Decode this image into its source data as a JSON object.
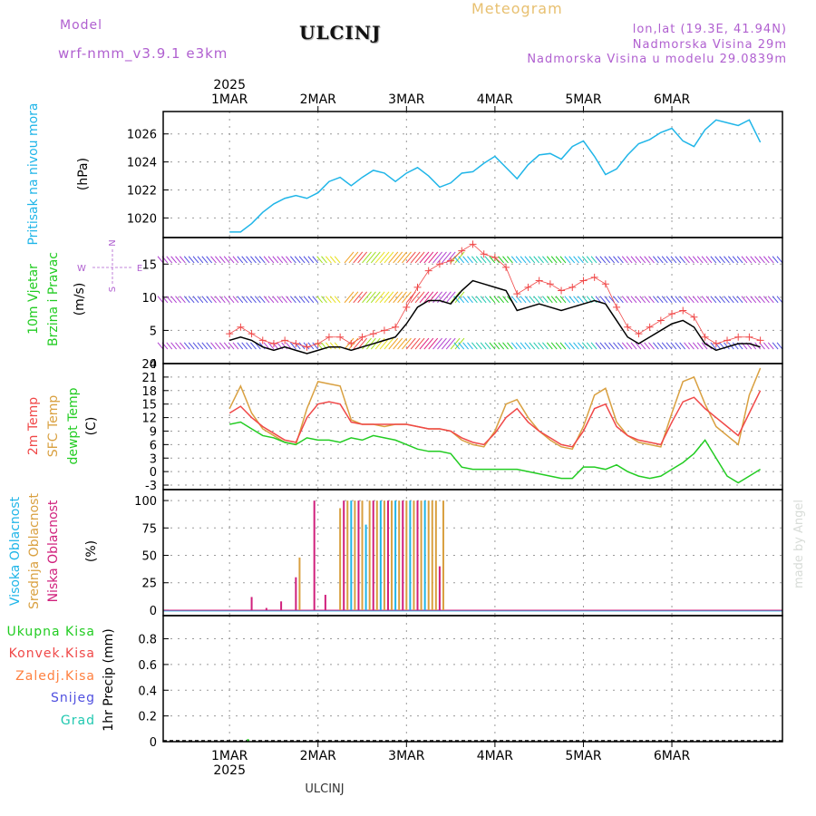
{
  "header": {
    "title": "ULCINJ",
    "meteogram": "Meteogram",
    "model_label": "Model",
    "model_name": "wrf-nmm_v3.9.1 e3km",
    "lonlat": "lon,lat (19.3E, 41.94N)",
    "altitude": "Nadmorska Visina 29m",
    "model_altitude": "Nadmorska Visina u modelu 29.0839m",
    "year": "2025",
    "footer_station": "ULCINJ",
    "credit": "made by Angel"
  },
  "colors": {
    "pressure": "#1fb5e8",
    "temp2m": "#f04848",
    "sfc_temp": "#d9a040",
    "dewpoint": "#22cc22",
    "high_cloud": "#1fb5e8",
    "mid_cloud": "#d9a040",
    "low_cloud": "#d0207c",
    "wind_speed": "#000000",
    "gust": "#f04848",
    "total_precip": "#22cc22",
    "conv_precip": "#f04848",
    "frz_precip": "#ff8040",
    "snow": "#5050e0",
    "graupel": "#20c8b0",
    "purple": "#b060d0"
  },
  "chart_data": [
    {
      "type": "line",
      "panel": "pressure",
      "ylabel_name": "Pritisak na nivou mora",
      "ylabel_unit": "(hPa)",
      "ylim": [
        1018.6,
        1027.6
      ],
      "yticks": [
        1020,
        1022,
        1024,
        1026
      ],
      "day_labels": [
        "1MAR",
        "2MAR",
        "3MAR",
        "4MAR",
        "5MAR",
        "6MAR"
      ],
      "x_hours": [
        0,
        3,
        6,
        9,
        12,
        15,
        18,
        21,
        24,
        27,
        30,
        33,
        36,
        39,
        42,
        45,
        48,
        51,
        54,
        57,
        60,
        63,
        66,
        69,
        72,
        75,
        78,
        81,
        84,
        87,
        90,
        93,
        96,
        99,
        102,
        105,
        108,
        111,
        114,
        117,
        120,
        123,
        126,
        129,
        132,
        135,
        138,
        141,
        144
      ],
      "series": [
        {
          "name": "pressure",
          "values": [
            1019.0,
            1019.0,
            1019.6,
            1020.4,
            1021.0,
            1021.4,
            1021.6,
            1021.4,
            1021.8,
            1022.6,
            1022.9,
            1022.3,
            1022.9,
            1023.4,
            1023.2,
            1022.6,
            1023.2,
            1023.6,
            1023.0,
            1022.2,
            1022.5,
            1023.2,
            1023.3,
            1023.9,
            1024.4,
            1023.6,
            1022.8,
            1023.8,
            1024.5,
            1024.6,
            1024.2,
            1025.1,
            1025.5,
            1024.4,
            1023.1,
            1023.5,
            1024.5,
            1025.3,
            1025.6,
            1026.1,
            1026.4,
            1025.5,
            1025.1,
            1026.3,
            1027.0,
            1026.8,
            1026.6,
            1027.0,
            1025.4
          ]
        }
      ]
    },
    {
      "type": "line",
      "panel": "wind",
      "ylabel_name": "10m Vjetar",
      "ylabel_name2": "Brzina i Pravac",
      "ylabel_unit": "(m/s)",
      "compass": {
        "n": "N",
        "s": "S",
        "e": "E",
        "w": "W",
        "up": "^",
        "down": "v"
      },
      "ylim": [
        0,
        19
      ],
      "yticks": [
        0,
        5,
        10,
        15
      ],
      "x_hours": [
        0,
        3,
        6,
        9,
        12,
        15,
        18,
        21,
        24,
        27,
        30,
        33,
        36,
        39,
        42,
        45,
        48,
        51,
        54,
        57,
        60,
        63,
        66,
        69,
        72,
        75,
        78,
        81,
        84,
        87,
        90,
        93,
        96,
        99,
        102,
        105,
        108,
        111,
        114,
        117,
        120,
        123,
        126,
        129,
        132,
        135,
        138,
        141,
        144
      ],
      "series": [
        {
          "name": "wind speed",
          "values": [
            3.5,
            4.0,
            3.5,
            2.5,
            2.0,
            2.5,
            2.0,
            1.5,
            2.0,
            2.5,
            2.5,
            2.0,
            2.5,
            3.0,
            3.5,
            4.0,
            6.0,
            8.5,
            9.5,
            9.5,
            9.0,
            11.0,
            12.5,
            12.0,
            11.5,
            11.0,
            8.0,
            8.5,
            9.0,
            8.5,
            8.0,
            8.5,
            9.0,
            9.5,
            9.0,
            6.5,
            4.0,
            3.0,
            4.0,
            5.0,
            6.0,
            6.5,
            5.5,
            3.0,
            2.0,
            2.5,
            3.0,
            3.0,
            2.5
          ]
        },
        {
          "name": "gust",
          "values": [
            4.5,
            5.5,
            4.5,
            3.5,
            3.0,
            3.5,
            3.0,
            2.5,
            3.0,
            4.0,
            4.0,
            3.0,
            4.0,
            4.5,
            5.0,
            5.5,
            8.5,
            11.5,
            14.0,
            15.0,
            15.5,
            17.0,
            18.0,
            16.5,
            16.0,
            14.5,
            10.5,
            11.5,
            12.5,
            12.0,
            11.0,
            11.5,
            12.5,
            13.0,
            12.0,
            8.5,
            5.5,
            4.5,
            5.5,
            6.5,
            7.5,
            8.0,
            7.0,
            4.0,
            3.0,
            3.5,
            4.0,
            4.0,
            3.5
          ]
        }
      ]
    },
    {
      "type": "line",
      "panel": "temperature",
      "ylabel_t2m": "2m Temp",
      "ylabel_sfc": "SFC Temp",
      "ylabel_dew": "dewpt Temp",
      "ylabel_unit": "(C)",
      "ylim": [
        -4,
        24
      ],
      "yticks": [
        -3,
        0,
        3,
        6,
        9,
        12,
        15,
        18,
        21,
        24
      ],
      "x_hours": [
        0,
        3,
        6,
        9,
        12,
        15,
        18,
        21,
        24,
        27,
        30,
        33,
        36,
        39,
        42,
        45,
        48,
        51,
        54,
        57,
        60,
        63,
        66,
        69,
        72,
        75,
        78,
        81,
        84,
        87,
        90,
        93,
        96,
        99,
        102,
        105,
        108,
        111,
        114,
        117,
        120,
        123,
        126,
        129,
        132,
        135,
        138,
        141,
        144
      ],
      "series": [
        {
          "name": "2m Temp",
          "values": [
            13.0,
            14.5,
            12.0,
            10.0,
            8.5,
            7.0,
            6.5,
            12.0,
            15.0,
            15.5,
            15.0,
            11.0,
            10.5,
            10.5,
            10.5,
            10.5,
            10.5,
            10.0,
            9.5,
            9.5,
            9.0,
            7.5,
            6.5,
            6.0,
            8.5,
            12.0,
            14.0,
            11.0,
            9.0,
            7.5,
            6.0,
            5.5,
            9.0,
            14.0,
            15.0,
            10.0,
            8.0,
            7.0,
            6.5,
            6.0,
            11.0,
            15.5,
            16.5,
            14.0,
            12.0,
            10.0,
            8.0,
            13.0,
            18.0
          ]
        },
        {
          "name": "SFC Temp",
          "values": [
            14.0,
            19.0,
            13.0,
            9.5,
            8.0,
            6.5,
            6.0,
            14.0,
            20.0,
            19.5,
            19.0,
            11.5,
            10.5,
            10.5,
            10.0,
            10.5,
            10.5,
            10.0,
            9.5,
            9.5,
            9.0,
            7.0,
            6.0,
            5.5,
            9.0,
            15.0,
            16.0,
            12.0,
            9.0,
            7.0,
            5.5,
            5.0,
            10.0,
            17.0,
            18.5,
            11.0,
            8.0,
            6.5,
            6.0,
            5.5,
            13.0,
            20.0,
            21.0,
            15.0,
            10.0,
            8.0,
            6.0,
            17.0,
            23.0
          ]
        },
        {
          "name": "dewpt Temp",
          "values": [
            10.5,
            11.0,
            9.5,
            8.0,
            7.5,
            6.5,
            6.0,
            7.5,
            7.0,
            7.0,
            6.5,
            7.5,
            7.0,
            8.0,
            7.5,
            7.0,
            6.0,
            5.0,
            4.5,
            4.5,
            4.0,
            1.0,
            0.5,
            0.5,
            0.5,
            0.5,
            0.5,
            0.0,
            -0.5,
            -1.0,
            -1.5,
            -1.5,
            1.0,
            1.0,
            0.5,
            1.5,
            0.0,
            -1.0,
            -1.5,
            -1.0,
            0.5,
            2.0,
            4.0,
            7.0,
            3.0,
            -1.0,
            -2.5,
            -1.0,
            0.5
          ]
        }
      ]
    },
    {
      "type": "bar",
      "panel": "cloud",
      "ylabel_high": "Visoka Oblacnost",
      "ylabel_mid": "Srednja Oblacnost",
      "ylabel_low": "Niska Oblacnost",
      "ylabel_unit": "(%)",
      "ylim": [
        -5,
        110
      ],
      "yticks": [
        0,
        25,
        50,
        75,
        100
      ],
      "bars": [
        {
          "h": 6,
          "layer": "low",
          "value": 12
        },
        {
          "h": 10,
          "layer": "low",
          "value": 2
        },
        {
          "h": 14,
          "layer": "low",
          "value": 8
        },
        {
          "h": 18,
          "layer": "low",
          "value": 30
        },
        {
          "h": 19,
          "layer": "mid",
          "value": 48
        },
        {
          "h": 23,
          "layer": "low",
          "value": 100
        },
        {
          "h": 26,
          "layer": "low",
          "value": 14
        },
        {
          "h": 30,
          "layer": "mid",
          "value": 93
        },
        {
          "h": 31,
          "layer": "low",
          "value": 100
        },
        {
          "h": 32,
          "layer": "mid",
          "value": 100
        },
        {
          "h": 33,
          "layer": "high",
          "value": 100
        },
        {
          "h": 34,
          "layer": "mid",
          "value": 100
        },
        {
          "h": 35,
          "layer": "low",
          "value": 100
        },
        {
          "h": 36,
          "layer": "mid",
          "value": 100
        },
        {
          "h": 37,
          "layer": "high",
          "value": 78
        },
        {
          "h": 38,
          "layer": "mid",
          "value": 100
        },
        {
          "h": 39,
          "layer": "low",
          "value": 100
        },
        {
          "h": 40,
          "layer": "mid",
          "value": 100
        },
        {
          "h": 41,
          "layer": "high",
          "value": 100
        },
        {
          "h": 42,
          "layer": "mid",
          "value": 100
        },
        {
          "h": 43,
          "layer": "low",
          "value": 100
        },
        {
          "h": 44,
          "layer": "mid",
          "value": 100
        },
        {
          "h": 45,
          "layer": "high",
          "value": 100
        },
        {
          "h": 46,
          "layer": "mid",
          "value": 100
        },
        {
          "h": 47,
          "layer": "low",
          "value": 100
        },
        {
          "h": 48,
          "layer": "mid",
          "value": 100
        },
        {
          "h": 49,
          "layer": "high",
          "value": 100
        },
        {
          "h": 50,
          "layer": "mid",
          "value": 100
        },
        {
          "h": 51,
          "layer": "low",
          "value": 100
        },
        {
          "h": 52,
          "layer": "mid",
          "value": 100
        },
        {
          "h": 53,
          "layer": "high",
          "value": 100
        },
        {
          "h": 54,
          "layer": "mid",
          "value": 100
        },
        {
          "h": 55,
          "layer": "mid",
          "value": 100
        },
        {
          "h": 56,
          "layer": "mid",
          "value": 100
        },
        {
          "h": 57,
          "layer": "low",
          "value": 40
        },
        {
          "h": 58,
          "layer": "mid",
          "value": 100
        }
      ]
    },
    {
      "type": "bar",
      "panel": "precipitation",
      "legend_total": "Ukupna Kisa",
      "legend_conv": "Konvek.Kisa",
      "legend_frz": "Zaledj.Kisa",
      "legend_snow": "Snijeg",
      "legend_graupel": "Grad",
      "ylabel_unit": "1hr Precip (mm)",
      "ylim": [
        0,
        0.98
      ],
      "yticks": [
        0,
        0.2,
        0.4,
        0.6,
        0.8
      ],
      "bars": [
        {
          "h": 5,
          "value": 0.02
        }
      ]
    }
  ]
}
